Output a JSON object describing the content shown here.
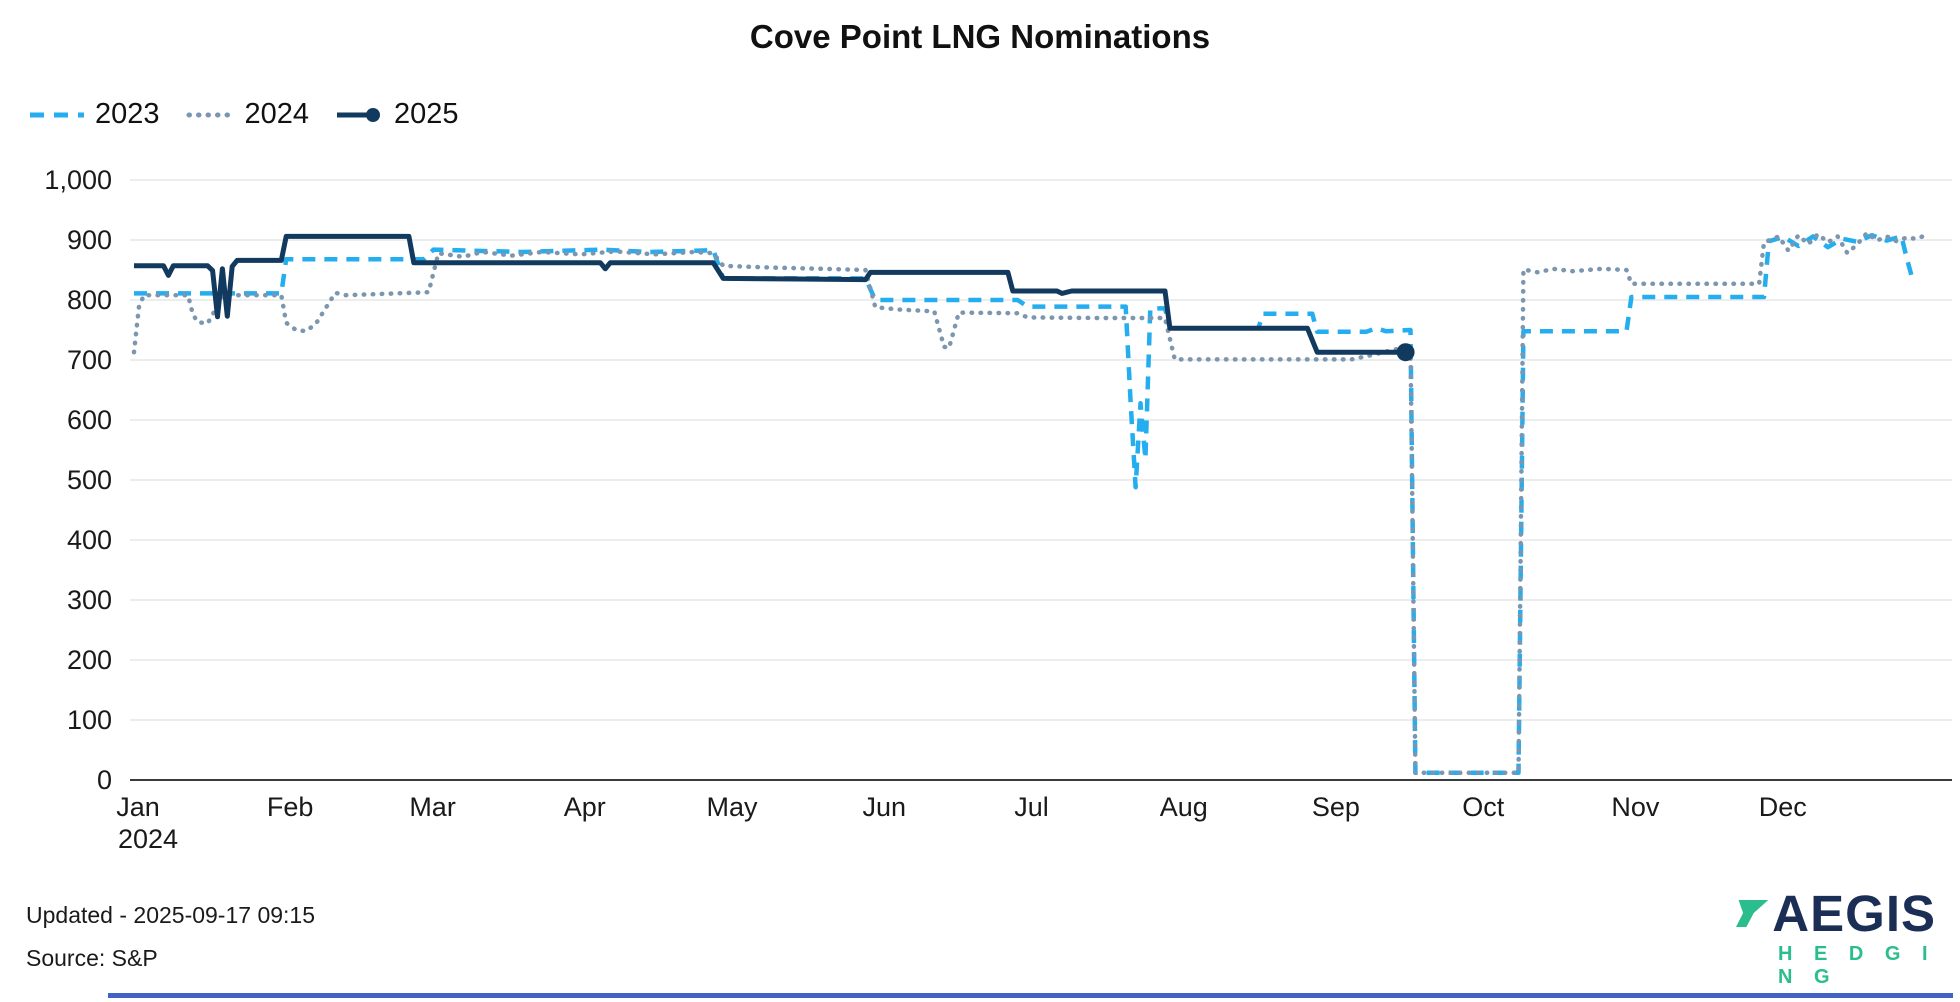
{
  "title": "Cove Point LNG Nominations",
  "footer": {
    "updated": "Updated - 2025-09-17 09:15",
    "source": "Source: S&P"
  },
  "logo": {
    "text": "AEGIS",
    "subtext": "H E D G I N G",
    "navy": "#1B2E55",
    "green": "#2BBD8E"
  },
  "page": {
    "accent_bar_color": "#4262C7",
    "grid_color": "#e7e7e7",
    "axis_color": "#3a3a3a",
    "text_color": "#1a1a1a"
  },
  "chart_data": {
    "type": "line",
    "title": "Cove Point LNG Nominations",
    "legend_position": "top-left",
    "grid": true,
    "x_axis": {
      "months": [
        "Jan",
        "Feb",
        "Mar",
        "Apr",
        "May",
        "Jun",
        "Jul",
        "Aug",
        "Sep",
        "Oct",
        "Nov",
        "Dec"
      ],
      "year_label": "2024",
      "range": [
        "2024-01-01",
        "2024-12-31"
      ]
    },
    "y_axis": {
      "min": 0,
      "max": 1000,
      "tick_step": 100,
      "tick_labels": [
        "0",
        "100",
        "200",
        "300",
        "400",
        "500",
        "600",
        "700",
        "800",
        "900",
        "1,000"
      ]
    },
    "series": [
      {
        "name": "2023",
        "color": "#24AEEF",
        "style": "dashed",
        "points": [
          [
            "01-01",
            811
          ],
          [
            "01-31",
            811
          ],
          [
            "02-01",
            868
          ],
          [
            "02-29",
            868
          ],
          [
            "03-02",
            884
          ],
          [
            "03-20",
            880
          ],
          [
            "04-05",
            884
          ],
          [
            "04-15",
            880
          ],
          [
            "04-28",
            883
          ],
          [
            "04-30",
            836
          ],
          [
            "05-29",
            836
          ],
          [
            "05-31",
            800
          ],
          [
            "06-29",
            800
          ],
          [
            "07-01",
            789
          ],
          [
            "07-21",
            789
          ],
          [
            "07-22",
            630
          ],
          [
            "07-23",
            488
          ],
          [
            "07-24",
            628
          ],
          [
            "07-25",
            535
          ],
          [
            "07-26",
            786
          ],
          [
            "07-29",
            786
          ],
          [
            "07-30",
            753
          ],
          [
            "08-17",
            753
          ],
          [
            "08-18",
            777
          ],
          [
            "08-28",
            777
          ],
          [
            "08-29",
            747
          ],
          [
            "09-08",
            747
          ],
          [
            "09-10",
            753
          ],
          [
            "09-12",
            748
          ],
          [
            "09-17",
            750
          ],
          [
            "09-18",
            12
          ],
          [
            "10-09",
            12
          ],
          [
            "10-10",
            748
          ],
          [
            "10-31",
            748
          ],
          [
            "11-01",
            805
          ],
          [
            "11-28",
            805
          ],
          [
            "11-29",
            898
          ],
          [
            "12-02",
            905
          ],
          [
            "12-05",
            890
          ],
          [
            "12-08",
            906
          ],
          [
            "12-11",
            888
          ],
          [
            "12-14",
            902
          ],
          [
            "12-17",
            897
          ],
          [
            "12-20",
            908
          ],
          [
            "12-23",
            899
          ],
          [
            "12-26",
            906
          ],
          [
            "12-27",
            872
          ],
          [
            "12-28",
            842
          ]
        ]
      },
      {
        "name": "2024",
        "color": "#7D96AF",
        "style": "dotted",
        "points": [
          [
            "01-01",
            713
          ],
          [
            "01-02",
            788
          ],
          [
            "01-03",
            808
          ],
          [
            "01-12",
            808
          ],
          [
            "01-13",
            776
          ],
          [
            "01-14",
            763
          ],
          [
            "01-16",
            761
          ],
          [
            "01-18",
            790
          ],
          [
            "01-19",
            808
          ],
          [
            "01-31",
            808
          ],
          [
            "02-01",
            762
          ],
          [
            "02-03",
            750
          ],
          [
            "02-05",
            748
          ],
          [
            "02-07",
            760
          ],
          [
            "02-09",
            786
          ],
          [
            "02-11",
            812
          ],
          [
            "02-13",
            808
          ],
          [
            "02-20",
            810
          ],
          [
            "03-01",
            813
          ],
          [
            "03-03",
            878
          ],
          [
            "03-08",
            872
          ],
          [
            "03-12",
            880
          ],
          [
            "03-18",
            874
          ],
          [
            "03-24",
            880
          ],
          [
            "04-01",
            876
          ],
          [
            "04-08",
            881
          ],
          [
            "04-16",
            876
          ],
          [
            "04-24",
            880
          ],
          [
            "04-28",
            878
          ],
          [
            "04-30",
            857
          ],
          [
            "05-10",
            854
          ],
          [
            "05-20",
            852
          ],
          [
            "05-29",
            850
          ],
          [
            "05-31",
            788
          ],
          [
            "06-05",
            784
          ],
          [
            "06-12",
            781
          ],
          [
            "06-14",
            722
          ],
          [
            "06-15",
            720
          ],
          [
            "06-17",
            779
          ],
          [
            "06-29",
            778
          ],
          [
            "07-01",
            771
          ],
          [
            "07-15",
            770
          ],
          [
            "07-29",
            770
          ],
          [
            "07-31",
            701
          ],
          [
            "09-05",
            701
          ],
          [
            "09-09",
            708
          ],
          [
            "09-13",
            716
          ],
          [
            "09-17",
            723
          ],
          [
            "09-18",
            12
          ],
          [
            "10-09",
            12
          ],
          [
            "10-10",
            851
          ],
          [
            "10-13",
            846
          ],
          [
            "10-16",
            852
          ],
          [
            "10-20",
            848
          ],
          [
            "10-26",
            852
          ],
          [
            "10-31",
            850
          ],
          [
            "11-01",
            827
          ],
          [
            "11-27",
            827
          ],
          [
            "11-28",
            896
          ],
          [
            "12-01",
            906
          ],
          [
            "12-03",
            882
          ],
          [
            "12-05",
            908
          ],
          [
            "12-07",
            893
          ],
          [
            "12-09",
            910
          ],
          [
            "12-11",
            896
          ],
          [
            "12-13",
            906
          ],
          [
            "12-15",
            878
          ],
          [
            "12-17",
            893
          ],
          [
            "12-19",
            912
          ],
          [
            "12-21",
            899
          ],
          [
            "12-23",
            906
          ],
          [
            "12-25",
            898
          ],
          [
            "12-27",
            904
          ],
          [
            "12-29",
            902
          ],
          [
            "12-31",
            908
          ]
        ]
      },
      {
        "name": "2025",
        "color": "#12395E",
        "style": "solid",
        "end_marker": true,
        "points": [
          [
            "01-01",
            857
          ],
          [
            "01-07",
            857
          ],
          [
            "01-08",
            841
          ],
          [
            "01-09",
            857
          ],
          [
            "01-16",
            857
          ],
          [
            "01-17",
            849
          ],
          [
            "01-18",
            772
          ],
          [
            "01-19",
            852
          ],
          [
            "01-20",
            773
          ],
          [
            "01-21",
            856
          ],
          [
            "01-22",
            866
          ],
          [
            "01-31",
            866
          ],
          [
            "02-01",
            906
          ],
          [
            "02-26",
            906
          ],
          [
            "02-27",
            862
          ],
          [
            "04-05",
            862
          ],
          [
            "04-06",
            852
          ],
          [
            "04-07",
            862
          ],
          [
            "04-28",
            862
          ],
          [
            "04-30",
            836
          ],
          [
            "05-15",
            835
          ],
          [
            "05-29",
            834
          ],
          [
            "05-30",
            846
          ],
          [
            "06-27",
            846
          ],
          [
            "06-28",
            815
          ],
          [
            "07-07",
            815
          ],
          [
            "07-08",
            811
          ],
          [
            "07-10",
            815
          ],
          [
            "07-29",
            815
          ],
          [
            "07-30",
            753
          ],
          [
            "08-27",
            753
          ],
          [
            "08-29",
            713
          ],
          [
            "09-16",
            713
          ]
        ]
      }
    ]
  }
}
